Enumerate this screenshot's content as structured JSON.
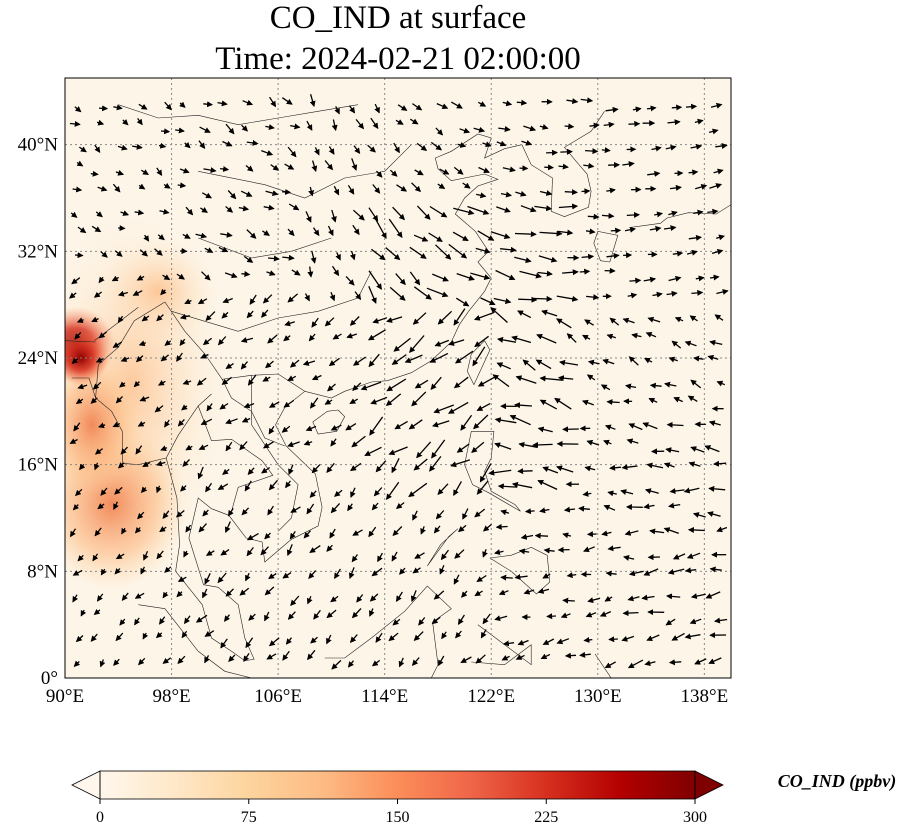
{
  "title": {
    "line1": "CO_IND at surface",
    "line2": "Time: 2024-02-21 02:00:00"
  },
  "map": {
    "projection": "PlateCarree",
    "lon_range": [
      90,
      140
    ],
    "lat_range": [
      0,
      45
    ],
    "gridlines": "dotted",
    "coastlines": true,
    "country_borders": true,
    "vector_field": "wind arrows (black)"
  },
  "axes": {
    "x_ticks": [
      "90°E",
      "98°E",
      "106°E",
      "114°E",
      "122°E",
      "130°E",
      "138°E"
    ],
    "y_ticks": [
      "0°",
      "8°N",
      "16°N",
      "24°N",
      "32°N",
      "40°N"
    ]
  },
  "colorbar": {
    "label": "CO_IND (ppbv)",
    "colormap": "OrRd",
    "ticks": [
      "0",
      "75",
      "150",
      "225",
      "300"
    ],
    "range": [
      0,
      300
    ],
    "extend": "both",
    "colors": [
      "#fff7ec",
      "#fee8c8",
      "#fdd49e",
      "#fdbb84",
      "#fc8d59",
      "#ef6548",
      "#d7301f",
      "#b30000",
      "#7f0000"
    ]
  },
  "chart_data": {
    "type": "heatmap",
    "title": "CO_IND at surface",
    "subtitle": "Time: 2024-02-21 02:00:00",
    "variable": "CO_IND",
    "units": "ppbv",
    "xlabel": "",
    "ylabel": "",
    "xlim": [
      90,
      140
    ],
    "ylim": [
      0,
      45
    ],
    "clim": [
      0,
      300
    ],
    "hotspots": [
      {
        "lon": 91,
        "lat": 25,
        "value": 260
      },
      {
        "lon": 94,
        "lat": 13,
        "value": 150
      },
      {
        "lon": 96,
        "lat": 22,
        "value": 90
      },
      {
        "lon": 97,
        "lat": 29,
        "value": 70
      }
    ]
  }
}
